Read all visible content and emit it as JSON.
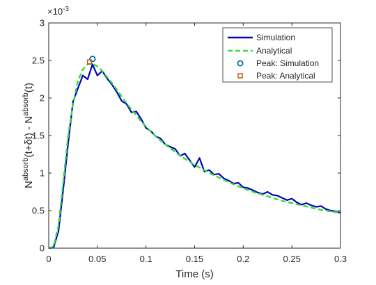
{
  "chart_data": {
    "type": "line",
    "xlabel": "Time (s)",
    "ylabel": {
      "base": "N",
      "sup1": "absorb",
      "mid": "(t+δt) - N",
      "sup2": "absorb",
      "end": "(t)"
    },
    "y_exponent": {
      "base": "×10",
      "power": "-3"
    },
    "xlim": [
      0,
      0.3
    ],
    "ylim": [
      0,
      0.003
    ],
    "x_ticks": [
      0,
      0.05,
      0.1,
      0.15,
      0.2,
      0.25,
      0.3
    ],
    "x_tick_labels": [
      "0",
      "0.05",
      "0.1",
      "0.15",
      "0.2",
      "0.25",
      "0.3"
    ],
    "y_ticks": [
      0,
      0.0005,
      0.001,
      0.0015,
      0.002,
      0.0025,
      0.003
    ],
    "y_tick_labels": [
      "0",
      "0.5",
      "1",
      "1.5",
      "2",
      "2.5",
      "3"
    ],
    "grid": false,
    "legend_position": "top-right",
    "series": [
      {
        "name": "Simulation",
        "style": "solid-line",
        "color": "#0000bf",
        "x": [
          0.0,
          0.005,
          0.01,
          0.015,
          0.02,
          0.025,
          0.03,
          0.035,
          0.04,
          0.045,
          0.05,
          0.055,
          0.06,
          0.065,
          0.07,
          0.075,
          0.08,
          0.085,
          0.09,
          0.095,
          0.1,
          0.105,
          0.11,
          0.115,
          0.12,
          0.125,
          0.13,
          0.135,
          0.14,
          0.145,
          0.15,
          0.155,
          0.16,
          0.165,
          0.17,
          0.175,
          0.18,
          0.185,
          0.19,
          0.195,
          0.2,
          0.205,
          0.21,
          0.215,
          0.22,
          0.225,
          0.23,
          0.235,
          0.24,
          0.245,
          0.25,
          0.255,
          0.26,
          0.265,
          0.27,
          0.275,
          0.28,
          0.285,
          0.29,
          0.295,
          0.3
        ],
        "y": [
          0.0,
          1e-05,
          0.00023,
          0.0008,
          0.0014,
          0.00195,
          0.00213,
          0.0023,
          0.00225,
          0.00245,
          0.0023,
          0.00236,
          0.00226,
          0.00218,
          0.00208,
          0.00196,
          0.00192,
          0.00181,
          0.00182,
          0.00172,
          0.0016,
          0.00156,
          0.00149,
          0.00146,
          0.00138,
          0.00135,
          0.00132,
          0.00123,
          0.00126,
          0.00117,
          0.00108,
          0.0012,
          0.00102,
          0.00104,
          0.00098,
          0.00099,
          0.00093,
          0.0009,
          0.00086,
          0.00087,
          0.00081,
          0.0008,
          0.00077,
          0.00074,
          0.00072,
          0.00075,
          0.00071,
          0.0007,
          0.00067,
          0.00064,
          0.00066,
          0.00061,
          0.00058,
          0.0006,
          0.00057,
          0.00055,
          0.00056,
          0.00052,
          0.0005,
          0.00049,
          0.00047
        ]
      },
      {
        "name": "Analytical",
        "style": "dashed-line",
        "color": "#33dd33",
        "x": [
          0.0,
          0.005,
          0.01,
          0.015,
          0.02,
          0.025,
          0.03,
          0.035,
          0.04,
          0.045,
          0.05,
          0.055,
          0.06,
          0.065,
          0.07,
          0.075,
          0.08,
          0.085,
          0.09,
          0.095,
          0.1,
          0.11,
          0.12,
          0.13,
          0.14,
          0.15,
          0.16,
          0.17,
          0.18,
          0.19,
          0.2,
          0.21,
          0.22,
          0.23,
          0.24,
          0.25,
          0.26,
          0.27,
          0.28,
          0.29,
          0.3
        ],
        "y": [
          0.0,
          2e-05,
          0.0003,
          0.0009,
          0.0015,
          0.00192,
          0.00223,
          0.00238,
          0.00245,
          0.00246,
          0.00242,
          0.00236,
          0.00228,
          0.0022,
          0.00211,
          0.00202,
          0.00193,
          0.00185,
          0.00177,
          0.00169,
          0.00162,
          0.00149,
          0.00138,
          0.00128,
          0.00119,
          0.00111,
          0.00104,
          0.00097,
          0.00091,
          0.00085,
          0.0008,
          0.00075,
          0.00071,
          0.00067,
          0.00063,
          0.0006,
          0.00057,
          0.00054,
          0.00051,
          0.00049,
          0.00047
        ]
      },
      {
        "name": "Peak: Simulation",
        "style": "circle-marker",
        "color": "#0a6e9a",
        "x": [
          0.045
        ],
        "y": [
          0.00252
        ]
      },
      {
        "name": "Peak: Analytical",
        "style": "square-marker",
        "color": "#d95319",
        "x": [
          0.042
        ],
        "y": [
          0.00248
        ]
      }
    ]
  }
}
